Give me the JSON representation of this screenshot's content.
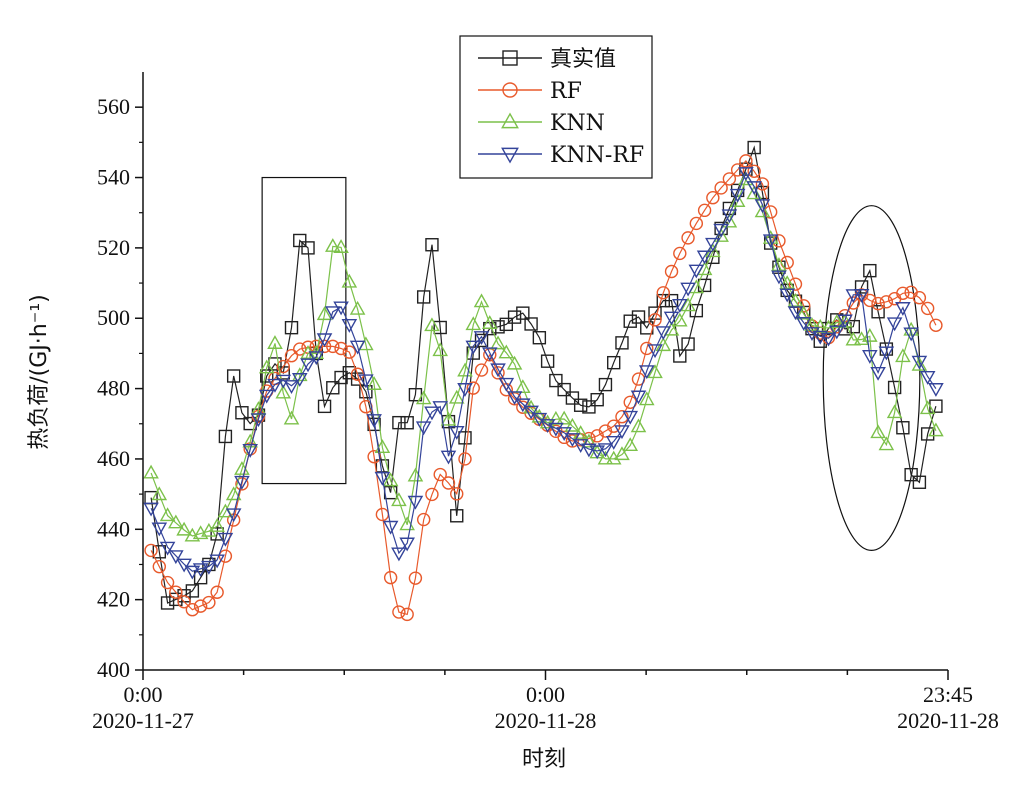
{
  "chart_data": {
    "type": "line",
    "title": "",
    "xlabel": "时刻",
    "ylabel": "热负荷/(GJ·h⁻¹)",
    "ylim": [
      400,
      570
    ],
    "xlim": [
      0,
      1
    ],
    "yticks": [
      400,
      420,
      440,
      460,
      480,
      500,
      520,
      540,
      560
    ],
    "xtick_labels": [
      {
        "time": "0:00",
        "date": "2020-11-27",
        "x": 0
      },
      {
        "time": "0:00",
        "date": "2020-11-28",
        "x": 0.5
      },
      {
        "time": "23:45",
        "date": "2020-11-28",
        "x": 1
      }
    ],
    "grid": false,
    "legend_position": "top-center",
    "series": [
      {
        "name": "真实值",
        "color": "#222222",
        "marker": "square",
        "knots": [
          [
            0.01,
            449
          ],
          [
            0.03,
            419
          ],
          [
            0.06,
            422
          ],
          [
            0.09,
            433
          ],
          [
            0.11,
            487
          ],
          [
            0.12,
            474
          ],
          [
            0.14,
            468
          ],
          [
            0.15,
            481
          ],
          [
            0.16,
            488
          ],
          [
            0.18,
            483
          ],
          [
            0.19,
            515
          ],
          [
            0.2,
            530
          ],
          [
            0.21,
            510
          ],
          [
            0.22,
            472
          ],
          [
            0.235,
            480
          ],
          [
            0.245,
            483
          ],
          [
            0.26,
            485
          ],
          [
            0.28,
            478
          ],
          [
            0.3,
            455
          ],
          [
            0.31,
            449
          ],
          [
            0.32,
            476
          ],
          [
            0.33,
            469
          ],
          [
            0.34,
            480
          ],
          [
            0.35,
            510
          ],
          [
            0.355,
            528
          ],
          [
            0.365,
            510
          ],
          [
            0.375,
            480
          ],
          [
            0.385,
            459
          ],
          [
            0.39,
            443
          ],
          [
            0.4,
            466
          ],
          [
            0.41,
            490
          ],
          [
            0.43,
            497
          ],
          [
            0.45,
            498
          ],
          [
            0.47,
            502
          ],
          [
            0.49,
            496
          ],
          [
            0.51,
            483
          ],
          [
            0.53,
            478
          ],
          [
            0.55,
            474
          ],
          [
            0.57,
            478
          ],
          [
            0.58,
            485
          ],
          [
            0.59,
            490
          ],
          [
            0.61,
            502
          ],
          [
            0.63,
            496
          ],
          [
            0.64,
            505
          ],
          [
            0.66,
            505
          ],
          [
            0.67,
            482
          ],
          [
            0.68,
            497
          ],
          [
            0.7,
            511
          ],
          [
            0.72,
            527
          ],
          [
            0.74,
            537
          ],
          [
            0.76,
            549
          ],
          [
            0.78,
            521
          ],
          [
            0.8,
            508
          ],
          [
            0.82,
            502
          ],
          [
            0.84,
            493
          ],
          [
            0.86,
            500
          ],
          [
            0.88,
            495
          ],
          [
            0.9,
            517
          ],
          [
            0.91,
            505
          ],
          [
            0.92,
            495
          ],
          [
            0.93,
            484
          ],
          [
            0.94,
            474
          ],
          [
            0.95,
            461
          ],
          [
            0.96,
            448
          ],
          [
            0.97,
            460
          ],
          [
            0.98,
            475
          ]
        ]
      },
      {
        "name": "RF",
        "color": "#e85a2c",
        "marker": "circle",
        "knots": [
          [
            0.01,
            434
          ],
          [
            0.03,
            425
          ],
          [
            0.06,
            417
          ],
          [
            0.09,
            420
          ],
          [
            0.11,
            440
          ],
          [
            0.13,
            460
          ],
          [
            0.15,
            478
          ],
          [
            0.17,
            485
          ],
          [
            0.19,
            491
          ],
          [
            0.21,
            492
          ],
          [
            0.24,
            492
          ],
          [
            0.26,
            490
          ],
          [
            0.28,
            472
          ],
          [
            0.3,
            440
          ],
          [
            0.31,
            422
          ],
          [
            0.32,
            415
          ],
          [
            0.33,
            416
          ],
          [
            0.34,
            428
          ],
          [
            0.35,
            445
          ],
          [
            0.37,
            456
          ],
          [
            0.39,
            450
          ],
          [
            0.4,
            460
          ],
          [
            0.41,
            480
          ],
          [
            0.43,
            490
          ],
          [
            0.45,
            480
          ],
          [
            0.47,
            475
          ],
          [
            0.5,
            470
          ],
          [
            0.53,
            465
          ],
          [
            0.56,
            466
          ],
          [
            0.59,
            470
          ],
          [
            0.61,
            478
          ],
          [
            0.63,
            495
          ],
          [
            0.65,
            510
          ],
          [
            0.67,
            520
          ],
          [
            0.69,
            528
          ],
          [
            0.71,
            535
          ],
          [
            0.73,
            540
          ],
          [
            0.75,
            545
          ],
          [
            0.77,
            538
          ],
          [
            0.79,
            522
          ],
          [
            0.81,
            510
          ],
          [
            0.83,
            498
          ],
          [
            0.85,
            494
          ],
          [
            0.87,
            500
          ],
          [
            0.89,
            507
          ],
          [
            0.91,
            504
          ],
          [
            0.93,
            505
          ],
          [
            0.95,
            508
          ],
          [
            0.97,
            505
          ],
          [
            0.985,
            498
          ]
        ]
      },
      {
        "name": "KNN",
        "color": "#7cc14a",
        "marker": "triangle-up",
        "knots": [
          [
            0.01,
            456
          ],
          [
            0.03,
            444
          ],
          [
            0.06,
            438
          ],
          [
            0.09,
            440
          ],
          [
            0.11,
            448
          ],
          [
            0.13,
            462
          ],
          [
            0.15,
            480
          ],
          [
            0.16,
            496
          ],
          [
            0.17,
            488
          ],
          [
            0.18,
            466
          ],
          [
            0.2,
            490
          ],
          [
            0.22,
            490
          ],
          [
            0.23,
            510
          ],
          [
            0.24,
            528
          ],
          [
            0.25,
            515
          ],
          [
            0.27,
            500
          ],
          [
            0.29,
            478
          ],
          [
            0.3,
            458
          ],
          [
            0.32,
            447
          ],
          [
            0.33,
            440
          ],
          [
            0.34,
            458
          ],
          [
            0.35,
            480
          ],
          [
            0.36,
            500
          ],
          [
            0.37,
            490
          ],
          [
            0.38,
            470
          ],
          [
            0.4,
            485
          ],
          [
            0.41,
            498
          ],
          [
            0.42,
            505
          ],
          [
            0.44,
            493
          ],
          [
            0.46,
            488
          ],
          [
            0.48,
            475
          ],
          [
            0.5,
            470
          ],
          [
            0.52,
            472
          ],
          [
            0.55,
            466
          ],
          [
            0.57,
            460
          ],
          [
            0.59,
            460
          ],
          [
            0.61,
            465
          ],
          [
            0.63,
            480
          ],
          [
            0.65,
            495
          ],
          [
            0.67,
            500
          ],
          [
            0.69,
            510
          ],
          [
            0.71,
            520
          ],
          [
            0.73,
            528
          ],
          [
            0.75,
            540
          ],
          [
            0.77,
            530
          ],
          [
            0.79,
            515
          ],
          [
            0.81,
            505
          ],
          [
            0.83,
            498
          ],
          [
            0.85,
            497
          ],
          [
            0.87,
            500
          ],
          [
            0.89,
            490
          ],
          [
            0.9,
            505
          ],
          [
            0.91,
            470
          ],
          [
            0.92,
            462
          ],
          [
            0.93,
            468
          ],
          [
            0.94,
            482
          ],
          [
            0.95,
            500
          ],
          [
            0.96,
            492
          ],
          [
            0.97,
            480
          ],
          [
            0.98,
            468
          ]
        ]
      },
      {
        "name": "KNN-RF",
        "color": "#34449a",
        "marker": "triangle-down",
        "knots": [
          [
            0.01,
            446
          ],
          [
            0.03,
            435
          ],
          [
            0.06,
            428
          ],
          [
            0.09,
            430
          ],
          [
            0.11,
            442
          ],
          [
            0.13,
            460
          ],
          [
            0.15,
            477
          ],
          [
            0.17,
            483
          ],
          [
            0.19,
            480
          ],
          [
            0.2,
            486
          ],
          [
            0.22,
            490
          ],
          [
            0.24,
            505
          ],
          [
            0.25,
            502
          ],
          [
            0.27,
            490
          ],
          [
            0.29,
            468
          ],
          [
            0.3,
            450
          ],
          [
            0.31,
            438
          ],
          [
            0.32,
            432
          ],
          [
            0.33,
            437
          ],
          [
            0.34,
            450
          ],
          [
            0.35,
            472
          ],
          [
            0.37,
            475
          ],
          [
            0.38,
            460
          ],
          [
            0.39,
            468
          ],
          [
            0.4,
            480
          ],
          [
            0.41,
            492
          ],
          [
            0.42,
            495
          ],
          [
            0.44,
            486
          ],
          [
            0.46,
            478
          ],
          [
            0.48,
            474
          ],
          [
            0.5,
            470
          ],
          [
            0.52,
            468
          ],
          [
            0.55,
            463
          ],
          [
            0.57,
            462
          ],
          [
            0.59,
            466
          ],
          [
            0.61,
            474
          ],
          [
            0.63,
            488
          ],
          [
            0.65,
            498
          ],
          [
            0.67,
            505
          ],
          [
            0.69,
            515
          ],
          [
            0.71,
            522
          ],
          [
            0.73,
            530
          ],
          [
            0.75,
            542
          ],
          [
            0.77,
            532
          ],
          [
            0.79,
            512
          ],
          [
            0.81,
            502
          ],
          [
            0.83,
            496
          ],
          [
            0.85,
            494
          ],
          [
            0.87,
            498
          ],
          [
            0.88,
            505
          ],
          [
            0.89,
            512
          ],
          [
            0.9,
            492
          ],
          [
            0.91,
            483
          ],
          [
            0.92,
            488
          ],
          [
            0.93,
            495
          ],
          [
            0.94,
            505
          ],
          [
            0.95,
            500
          ],
          [
            0.96,
            490
          ],
          [
            0.97,
            485
          ],
          [
            0.985,
            480
          ]
        ]
      }
    ],
    "annotations": [
      {
        "type": "rectangle",
        "x_range": [
          0.148,
          0.252
        ],
        "y_range": [
          453,
          540
        ]
      },
      {
        "type": "ellipse",
        "x_range": [
          0.845,
          0.965
        ],
        "y_range": [
          434,
          532
        ]
      }
    ]
  }
}
